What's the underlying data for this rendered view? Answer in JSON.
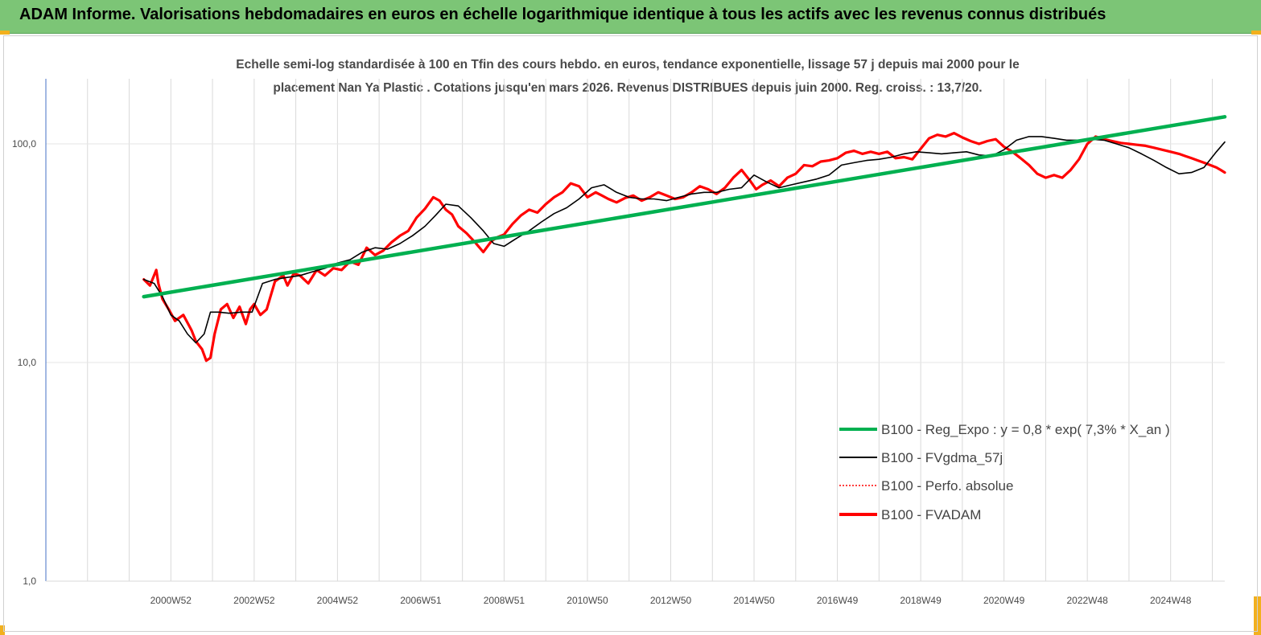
{
  "header": {
    "title": "ADAM Informe. Valorisations hebdomadaires en euros en échelle logarithmique identique à tous les actifs avec les revenus connus distribués"
  },
  "colors": {
    "header_bg": "#7cc576",
    "regression": "#00b050",
    "smoothed": "#000000",
    "perfo": "#ff0000",
    "fvadam": "#ff0000",
    "corner_marks": "#f2b01e"
  },
  "chart_data": {
    "type": "line",
    "title": "Echelle semi-log standardisée à 100 en Tfin des cours hebdo. en euros, tendance exponentielle, lissage 57 j depuis mai 2000 pour le placement Nan Ya Plastic . Cotations jusqu'en mars 2026. Revenus DISTRIBUES depuis juin 2000. Reg. croiss. : 13,7/20.",
    "title_lines": [
      "Echelle semi-log standardisée à 100 en Tfin des cours hebdo. en euros, tendance exponentielle, lissage 57 j depuis mai 2000 pour le",
      "placement Nan Ya Plastic . Cotations jusqu'en mars 2026. Revenus DISTRIBUES depuis juin 2000. Reg. croiss. : 13,7/20."
    ],
    "y_scale": "log",
    "ylim": [
      1,
      180
    ],
    "y_ticks": [
      {
        "value": 100,
        "label": "100,0"
      },
      {
        "value": 10,
        "label": "10,0"
      },
      {
        "value": 1,
        "label": "1,0"
      }
    ],
    "xlim": [
      1998.0,
      2026.3
    ],
    "x_ticks": [
      {
        "value": 2001.0,
        "label": "2000W52"
      },
      {
        "value": 2003.0,
        "label": "2002W52"
      },
      {
        "value": 2005.0,
        "label": "2004W52"
      },
      {
        "value": 2007.0,
        "label": "2006W51"
      },
      {
        "value": 2009.0,
        "label": "2008W51"
      },
      {
        "value": 2011.0,
        "label": "2010W50"
      },
      {
        "value": 2013.0,
        "label": "2012W50"
      },
      {
        "value": 2015.0,
        "label": "2014W50"
      },
      {
        "value": 2017.0,
        "label": "2016W49"
      },
      {
        "value": 2019.0,
        "label": "2018W49"
      },
      {
        "value": 2021.0,
        "label": "2020W49"
      },
      {
        "value": 2023.0,
        "label": "2022W48"
      },
      {
        "value": 2025.0,
        "label": "2024W48"
      }
    ],
    "grid": "vertical",
    "legend_position": "right",
    "series": [
      {
        "name": "B100 - Reg_Expo : y = 0,8 *  exp( 7,3% *   X_an )",
        "style": "thick-green",
        "x": [
          2000.35,
          2026.3
        ],
        "y": [
          20.0,
          133.0
        ]
      },
      {
        "name": "B100 - FVgdma_57j",
        "style": "thin-black",
        "x": [
          2000.35,
          2000.6,
          2000.8,
          2001.0,
          2001.2,
          2001.4,
          2001.6,
          2001.8,
          2001.95,
          2002.15,
          2002.4,
          2002.7,
          2002.95,
          2003.2,
          2003.5,
          2003.8,
          2004.1,
          2004.4,
          2004.7,
          2005.0,
          2005.3,
          2005.6,
          2005.9,
          2006.2,
          2006.5,
          2006.8,
          2007.1,
          2007.35,
          2007.6,
          2007.9,
          2008.2,
          2008.5,
          2008.75,
          2009.0,
          2009.3,
          2009.6,
          2009.9,
          2010.2,
          2010.5,
          2010.8,
          2011.1,
          2011.4,
          2011.7,
          2012.0,
          2012.3,
          2012.6,
          2012.9,
          2013.2,
          2013.5,
          2013.8,
          2014.1,
          2014.4,
          2014.7,
          2015.0,
          2015.3,
          2015.6,
          2015.9,
          2016.2,
          2016.5,
          2016.8,
          2017.1,
          2017.4,
          2017.7,
          2018.0,
          2018.3,
          2018.6,
          2018.9,
          2019.2,
          2019.5,
          2019.8,
          2020.1,
          2020.4,
          2020.7,
          2021.0,
          2021.3,
          2021.6,
          2021.9,
          2022.2,
          2022.5,
          2022.8,
          2023.1,
          2023.4,
          2023.7,
          2024.0,
          2024.3,
          2024.6,
          2024.9,
          2025.2,
          2025.5,
          2025.8,
          2026.1,
          2026.3
        ],
        "y": [
          24.0,
          23.0,
          20.0,
          16.5,
          15.5,
          13.5,
          12.3,
          13.5,
          17.0,
          17.0,
          16.8,
          17.0,
          17.0,
          23.0,
          24.0,
          24.5,
          25.0,
          26.0,
          27.0,
          28.5,
          29.5,
          32.0,
          33.5,
          33.0,
          35.0,
          38.0,
          42.0,
          47.0,
          53.0,
          52.0,
          46.0,
          40.0,
          35.0,
          34.0,
          37.0,
          40.0,
          44.0,
          48.0,
          51.0,
          56.0,
          63.0,
          65.0,
          60.0,
          57.0,
          56.0,
          56.0,
          55.0,
          57.0,
          59.0,
          60.0,
          60.0,
          62.0,
          63.0,
          72.0,
          67.0,
          63.0,
          65.0,
          67.0,
          69.0,
          72.0,
          80.0,
          82.0,
          84.0,
          85.0,
          87.0,
          90.0,
          92.0,
          91.0,
          90.0,
          91.0,
          92.0,
          89.0,
          88.0,
          94.0,
          104.0,
          108.0,
          108.0,
          106.0,
          104.0,
          104.0,
          105.0,
          104.0,
          100.0,
          96.0,
          90.0,
          84.0,
          78.0,
          73.0,
          74.0,
          78.0,
          92.0,
          102.0
        ]
      },
      {
        "name": "B100 - Perfo. absolue",
        "style": "dotted-red",
        "x": [],
        "y": []
      },
      {
        "name": "B100 - FVADAM",
        "style": "thick-red",
        "x": [
          2000.35,
          2000.5,
          2000.65,
          2000.7,
          2000.8,
          2000.95,
          2001.1,
          2001.3,
          2001.5,
          2001.6,
          2001.75,
          2001.85,
          2001.95,
          2002.05,
          2002.2,
          2002.35,
          2002.5,
          2002.65,
          2002.8,
          2002.9,
          2003.0,
          2003.15,
          2003.3,
          2003.5,
          2003.7,
          2003.8,
          2003.95,
          2004.1,
          2004.3,
          2004.5,
          2004.7,
          2004.9,
          2005.1,
          2005.3,
          2005.5,
          2005.7,
          2005.9,
          2006.1,
          2006.3,
          2006.5,
          2006.7,
          2006.9,
          2007.1,
          2007.3,
          2007.45,
          2007.6,
          2007.75,
          2007.9,
          2008.1,
          2008.3,
          2008.5,
          2008.7,
          2008.85,
          2009.0,
          2009.2,
          2009.4,
          2009.6,
          2009.8,
          2010.0,
          2010.2,
          2010.4,
          2010.6,
          2010.8,
          2011.0,
          2011.2,
          2011.35,
          2011.5,
          2011.7,
          2011.9,
          2012.1,
          2012.3,
          2012.5,
          2012.7,
          2012.9,
          2013.1,
          2013.3,
          2013.5,
          2013.7,
          2013.9,
          2014.1,
          2014.3,
          2014.5,
          2014.7,
          2014.9,
          2015.05,
          2015.2,
          2015.4,
          2015.6,
          2015.8,
          2016.0,
          2016.2,
          2016.4,
          2016.6,
          2016.8,
          2017.0,
          2017.2,
          2017.4,
          2017.6,
          2017.8,
          2018.0,
          2018.2,
          2018.4,
          2018.6,
          2018.8,
          2019.0,
          2019.2,
          2019.4,
          2019.6,
          2019.8,
          2020.0,
          2020.2,
          2020.4,
          2020.6,
          2020.8,
          2021.0,
          2021.2,
          2021.4,
          2021.6,
          2021.8,
          2022.0,
          2022.2,
          2022.4,
          2022.6,
          2022.8,
          2023.0,
          2023.2,
          2023.4,
          2023.6,
          2023.8,
          2024.0,
          2024.2,
          2024.4,
          2024.6,
          2024.8,
          2025.0,
          2025.2,
          2025.35,
          2025.5,
          2025.65,
          2025.8,
          2025.95,
          2026.1,
          2026.2,
          2026.3
        ],
        "y": [
          24.0,
          22.5,
          26.5,
          23.0,
          19.5,
          17.5,
          15.5,
          16.5,
          14.0,
          12.5,
          11.5,
          10.2,
          10.5,
          13.5,
          17.5,
          18.5,
          16.0,
          18.0,
          15.0,
          17.5,
          18.5,
          16.5,
          17.5,
          23.5,
          25.0,
          22.5,
          25.5,
          25.0,
          23.0,
          26.5,
          25.0,
          27.0,
          26.5,
          29.0,
          28.0,
          33.5,
          31.0,
          32.5,
          35.5,
          38.0,
          40.0,
          46.0,
          50.5,
          57.0,
          55.0,
          50.0,
          47.5,
          42.0,
          39.0,
          35.5,
          32.0,
          36.0,
          37.5,
          38.5,
          43.0,
          47.0,
          50.0,
          48.5,
          53.0,
          57.0,
          60.0,
          66.0,
          64.0,
          57.0,
          60.0,
          58.0,
          56.0,
          54.0,
          56.5,
          58.0,
          55.0,
          57.0,
          60.0,
          58.0,
          56.0,
          57.0,
          60.0,
          64.0,
          62.0,
          59.0,
          63.0,
          70.0,
          76.0,
          68.0,
          62.0,
          65.0,
          68.0,
          64.0,
          70.0,
          73.0,
          80.0,
          79.0,
          83.0,
          84.0,
          86.0,
          91.0,
          93.0,
          90.0,
          92.0,
          90.0,
          92.0,
          86.0,
          87.0,
          85.0,
          95.0,
          106.0,
          110.0,
          108.0,
          112.0,
          107.0,
          103.0,
          100.0,
          103.0,
          105.0,
          97.0,
          92.0,
          86.0,
          80.0,
          73.0,
          70.0,
          72.0,
          70.0,
          76.0,
          85.0,
          100.0,
          108.0,
          105.0,
          103.0,
          101.0,
          100.0,
          99.0,
          98.0,
          96.0,
          94.0,
          92.0,
          90.0,
          88.0,
          86.0,
          84.0,
          82.0,
          80.0,
          78.0,
          76.0,
          74.0
        ]
      }
    ]
  }
}
